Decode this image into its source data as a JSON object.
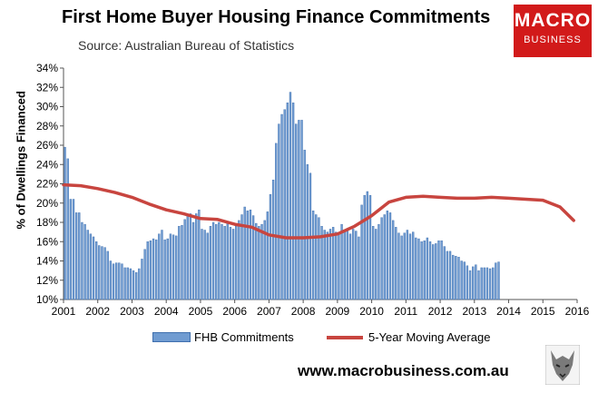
{
  "title": "First Home Buyer Housing Finance Commitments",
  "subtitle": "Source: Australian Bureau of Statistics",
  "logo": {
    "line1": "MACRO",
    "line2": "BUSINESS",
    "color": "#d21a1a"
  },
  "url": "www.macrobusiness.com.au",
  "wolf_icon": "wolf-logo-icon",
  "chart_data": {
    "type": "bar",
    "title": "First Home Buyer Housing Finance Commitments",
    "ylabel": "% of Dwellings Financed",
    "ylim": [
      10,
      34
    ],
    "yticks": [
      "10%",
      "12%",
      "14%",
      "16%",
      "18%",
      "20%",
      "22%",
      "24%",
      "26%",
      "28%",
      "30%",
      "32%",
      "34%"
    ],
    "xlim": [
      2001,
      2016
    ],
    "xticks": [
      "2001",
      "2002",
      "2003",
      "2004",
      "2005",
      "2006",
      "2007",
      "2008",
      "2009",
      "2010",
      "2011",
      "2012",
      "2013",
      "2014",
      "2015",
      "2016"
    ],
    "legend_position": "bottom",
    "grid": false,
    "series": [
      {
        "name": "FHB Commitments",
        "type": "bar",
        "color": "#6f9bd1",
        "x_start": 2001.0,
        "x_step": 0.08333,
        "values": [
          25.8,
          24.6,
          20.4,
          20.4,
          19.0,
          19.0,
          18.0,
          17.8,
          17.2,
          16.8,
          16.5,
          16.0,
          15.6,
          15.5,
          15.4,
          15.0,
          14.0,
          13.7,
          13.8,
          13.8,
          13.7,
          13.3,
          13.3,
          13.2,
          13.0,
          12.8,
          13.2,
          14.2,
          15.2,
          16.0,
          16.1,
          16.3,
          16.2,
          16.8,
          17.2,
          16.2,
          16.3,
          16.8,
          16.7,
          16.6,
          17.6,
          17.7,
          18.3,
          18.8,
          18.9,
          18.0,
          18.9,
          19.3,
          17.3,
          17.2,
          16.9,
          17.6,
          18.0,
          17.8,
          18.0,
          17.8,
          17.6,
          17.9,
          17.5,
          17.3,
          17.6,
          18.2,
          18.8,
          19.6,
          19.2,
          19.3,
          18.7,
          17.9,
          17.6,
          17.8,
          18.2,
          19.1,
          20.9,
          22.4,
          26.2,
          28.2,
          29.2,
          29.7,
          30.4,
          31.5,
          30.4,
          28.2,
          28.6,
          28.6,
          25.5,
          24.0,
          23.1,
          19.2,
          18.8,
          18.5,
          17.6,
          17.2,
          17.0,
          17.3,
          17.5,
          17.0,
          16.8,
          17.8,
          17.2,
          17.1,
          16.8,
          17.3,
          17.1,
          16.5,
          19.8,
          20.8,
          21.2,
          20.8,
          17.6,
          17.3,
          17.8,
          18.5,
          18.8,
          19.2,
          19.0,
          18.2,
          17.5,
          16.9,
          16.6,
          16.9,
          17.2,
          16.8,
          17.0,
          16.4,
          16.3,
          16.0,
          16.1,
          16.4,
          16.0,
          15.7,
          15.8,
          16.1,
          16.1,
          15.5,
          15.0,
          15.0,
          14.6,
          14.5,
          14.4,
          14.0,
          13.9,
          13.5,
          13.0,
          13.4,
          13.6,
          13.0,
          13.3,
          13.3,
          13.3,
          13.2,
          13.3,
          13.8,
          13.9
        ]
      },
      {
        "name": "5-Year Moving Average",
        "type": "line",
        "color": "#c8453f",
        "x": [
          2001.0,
          2001.5,
          2002.0,
          2002.5,
          2003.0,
          2003.5,
          2004.0,
          2004.5,
          2005.0,
          2005.5,
          2006.0,
          2006.5,
          2007.0,
          2007.5,
          2008.0,
          2008.5,
          2009.0,
          2009.5,
          2010.0,
          2010.5,
          2011.0,
          2011.5,
          2012.0,
          2012.5,
          2013.0,
          2013.5,
          2014.0,
          2014.5,
          2015.0,
          2015.5,
          2015.9
        ],
        "values": [
          21.9,
          21.8,
          21.5,
          21.1,
          20.6,
          19.9,
          19.3,
          18.9,
          18.4,
          18.3,
          17.8,
          17.5,
          16.7,
          16.4,
          16.4,
          16.5,
          16.8,
          17.6,
          18.7,
          20.1,
          20.6,
          20.7,
          20.6,
          20.5,
          20.5,
          20.6,
          20.5,
          20.4,
          20.3,
          19.6,
          18.2
        ]
      }
    ]
  },
  "legend": {
    "bar_label": "FHB Commitments",
    "line_label": "5-Year Moving Average"
  }
}
